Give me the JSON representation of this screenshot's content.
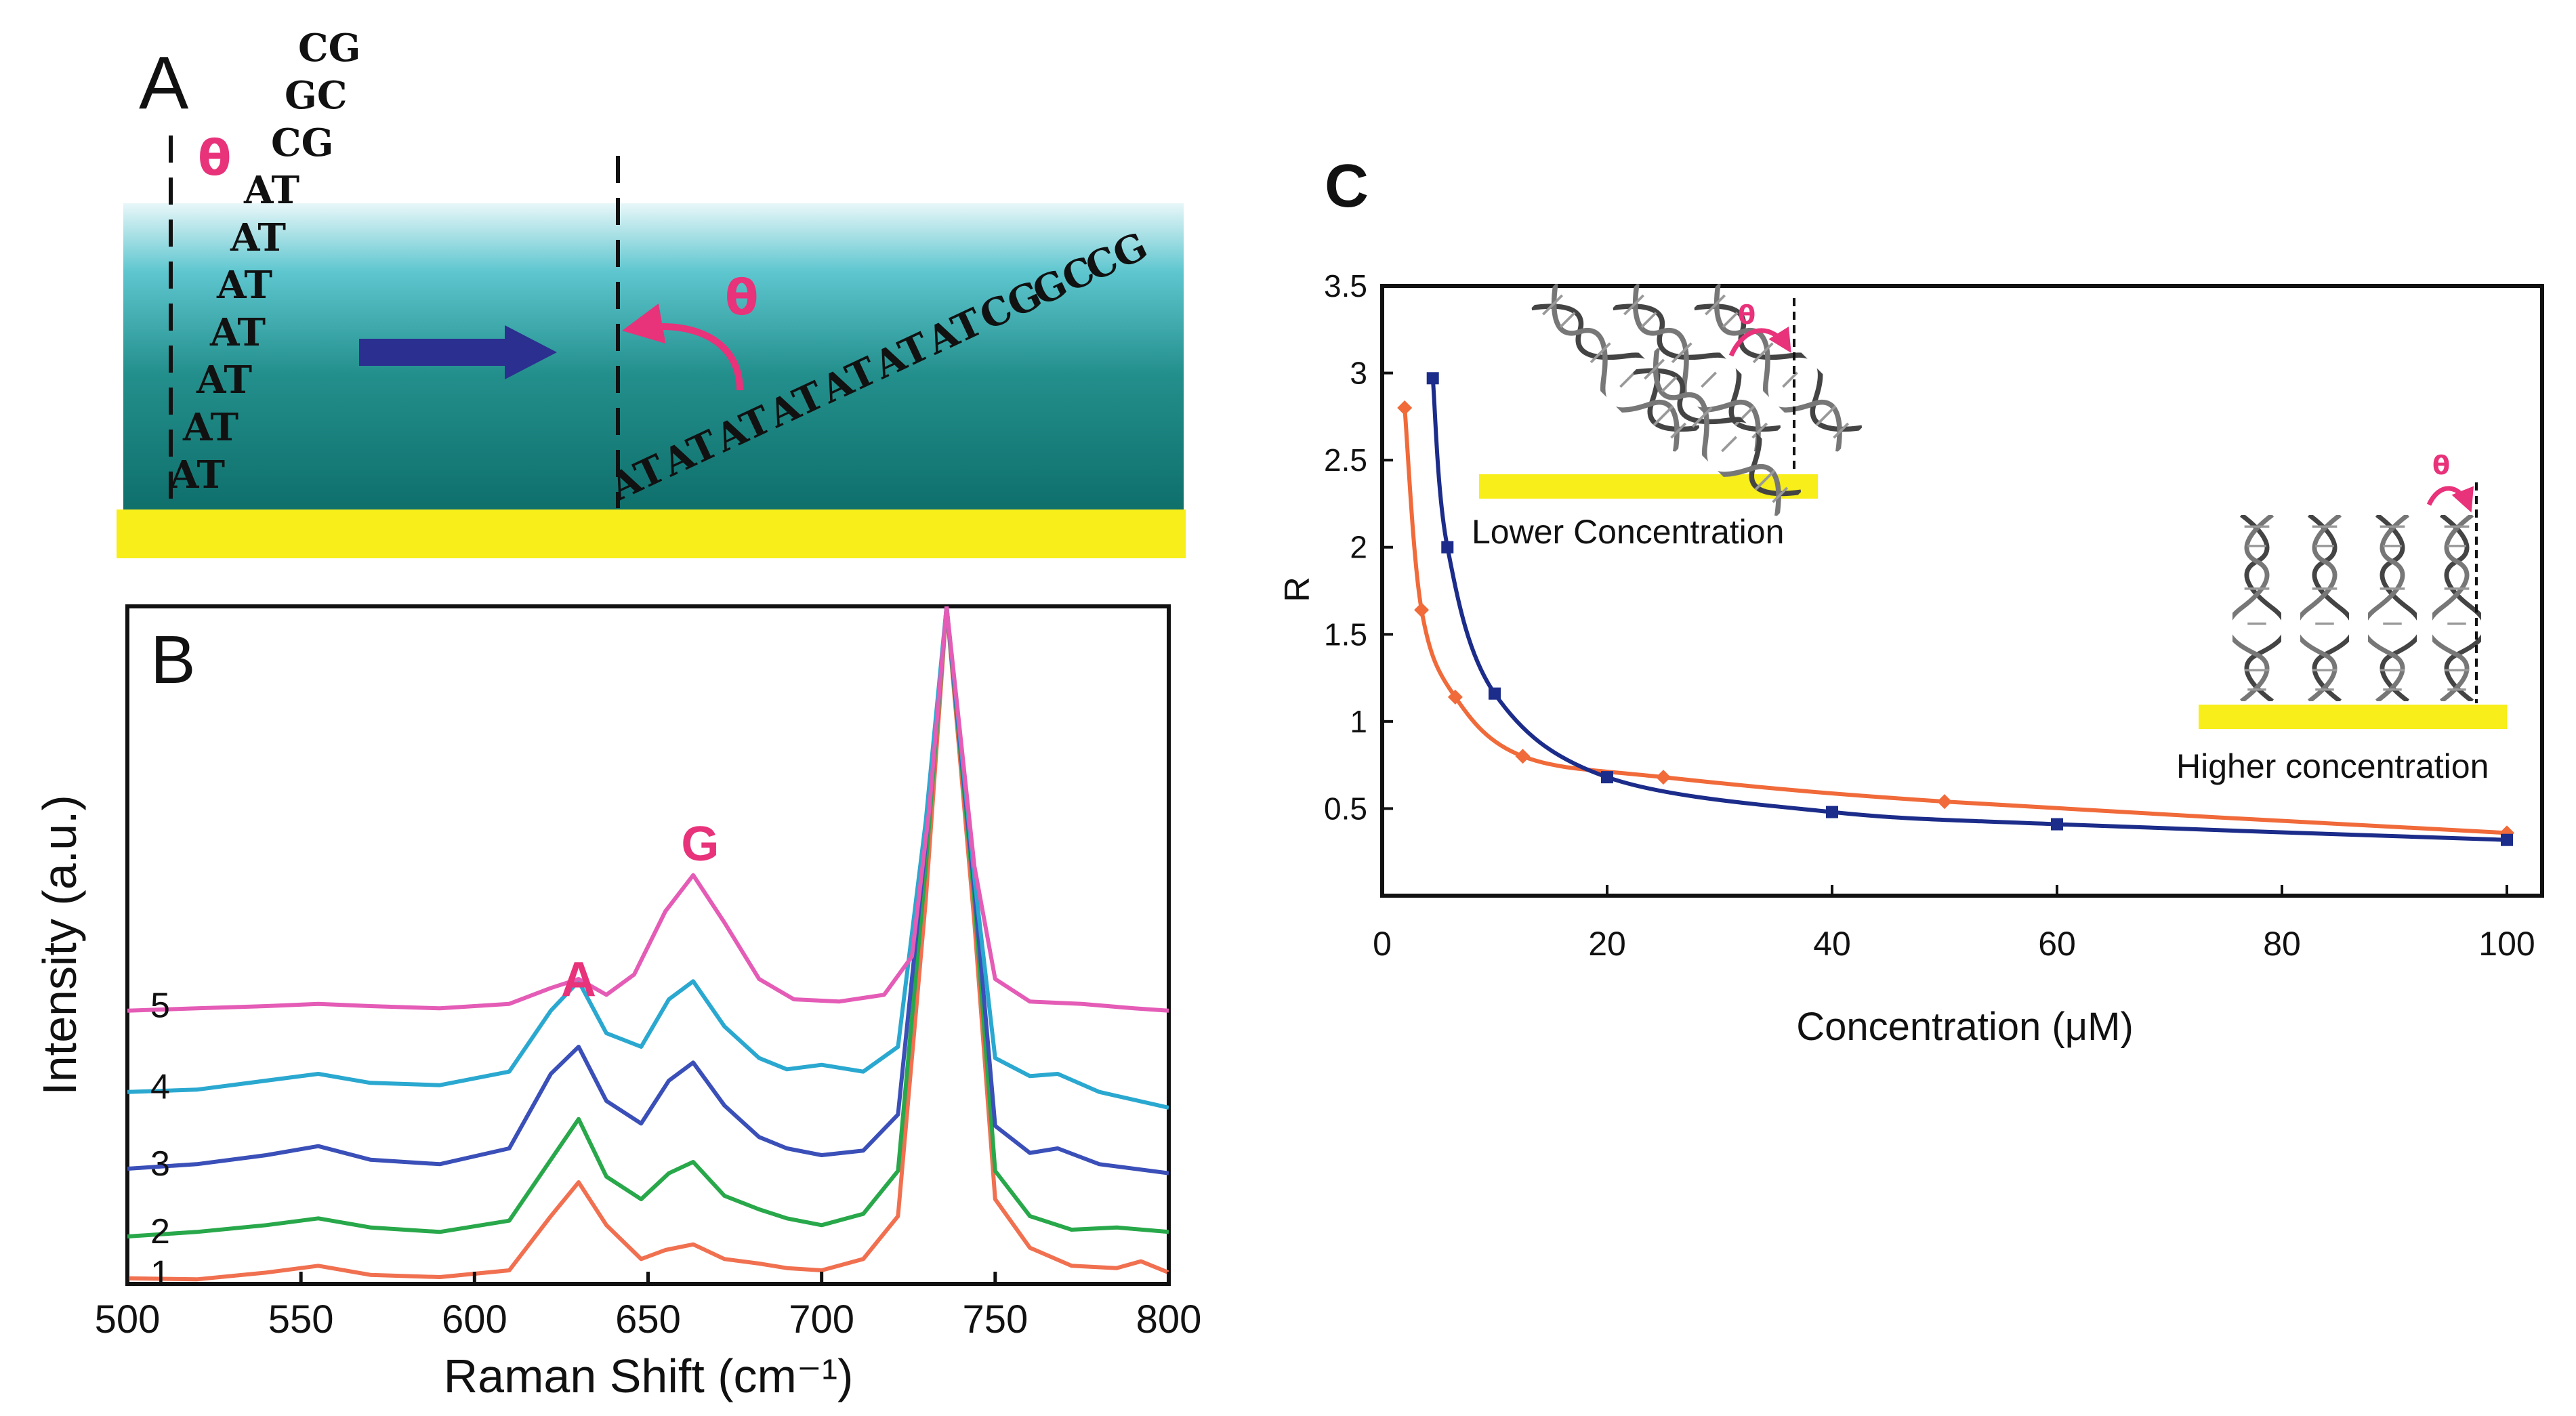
{
  "panel_a": {
    "label": "A",
    "theta": "θ",
    "base_pairs_left": [
      "CG",
      "GC",
      "CG",
      "AT",
      "AT",
      "AT",
      "AT",
      "AT",
      "AT",
      "AT"
    ],
    "base_pairs_right": [
      "AT",
      "AT",
      "AT",
      "AT",
      "AT",
      "AT",
      "AT",
      "CG",
      "GC",
      "CG"
    ],
    "colors": {
      "water_top": "#e8f7f9",
      "water_bottom": "#0e6e6a",
      "substrate": "#f7ee1a",
      "arrow": "#2b2f8f",
      "theta": "#e8327a"
    }
  },
  "chart_data": [
    {
      "type": "line",
      "panel": "B",
      "title": "",
      "xlabel": "Raman Shift (cm⁻¹)",
      "ylabel": "Intensity (a.u.)",
      "xlim": [
        500,
        800
      ],
      "ylim": [
        0,
        6
      ],
      "x_ticks": [
        500,
        550,
        600,
        650,
        700,
        750,
        800
      ],
      "peak_labels": [
        {
          "text": "A",
          "x": 630,
          "y": 2.55,
          "color": "#e8327a"
        },
        {
          "text": "G",
          "x": 665,
          "y": 3.75,
          "color": "#e8327a"
        }
      ],
      "series": [
        {
          "name": "1",
          "color": "#f07050",
          "offset": 0.05,
          "points": [
            [
              500,
              0.05
            ],
            [
              520,
              0.04
            ],
            [
              540,
              0.1
            ],
            [
              555,
              0.16
            ],
            [
              570,
              0.08
            ],
            [
              590,
              0.06
            ],
            [
              610,
              0.12
            ],
            [
              622,
              0.6
            ],
            [
              630,
              0.9
            ],
            [
              638,
              0.52
            ],
            [
              648,
              0.22
            ],
            [
              655,
              0.3
            ],
            [
              663,
              0.35
            ],
            [
              672,
              0.22
            ],
            [
              682,
              0.18
            ],
            [
              690,
              0.14
            ],
            [
              700,
              0.12
            ],
            [
              712,
              0.22
            ],
            [
              722,
              0.6
            ],
            [
              730,
              3.4
            ],
            [
              736,
              6.6
            ],
            [
              744,
              3.2
            ],
            [
              750,
              0.75
            ],
            [
              760,
              0.32
            ],
            [
              772,
              0.16
            ],
            [
              785,
              0.14
            ],
            [
              792,
              0.2
            ],
            [
              800,
              0.1
            ]
          ]
        },
        {
          "name": "2",
          "color": "#28a84a",
          "offset": 0.42,
          "points": [
            [
              500,
              0.42
            ],
            [
              520,
              0.46
            ],
            [
              540,
              0.52
            ],
            [
              555,
              0.58
            ],
            [
              570,
              0.5
            ],
            [
              590,
              0.46
            ],
            [
              610,
              0.56
            ],
            [
              622,
              1.1
            ],
            [
              630,
              1.46
            ],
            [
              638,
              0.95
            ],
            [
              648,
              0.75
            ],
            [
              656,
              0.98
            ],
            [
              663,
              1.08
            ],
            [
              672,
              0.78
            ],
            [
              682,
              0.66
            ],
            [
              690,
              0.58
            ],
            [
              700,
              0.52
            ],
            [
              712,
              0.62
            ],
            [
              722,
              1.0
            ],
            [
              730,
              3.7
            ],
            [
              736,
              6.6
            ],
            [
              744,
              3.4
            ],
            [
              750,
              1.0
            ],
            [
              760,
              0.6
            ],
            [
              772,
              0.48
            ],
            [
              785,
              0.5
            ],
            [
              800,
              0.46
            ]
          ]
        },
        {
          "name": "3",
          "color": "#3a4fb8",
          "offset": 1.02,
          "points": [
            [
              500,
              1.02
            ],
            [
              520,
              1.06
            ],
            [
              540,
              1.14
            ],
            [
              555,
              1.22
            ],
            [
              570,
              1.1
            ],
            [
              590,
              1.06
            ],
            [
              610,
              1.2
            ],
            [
              622,
              1.86
            ],
            [
              630,
              2.1
            ],
            [
              638,
              1.62
            ],
            [
              648,
              1.42
            ],
            [
              656,
              1.8
            ],
            [
              663,
              1.96
            ],
            [
              672,
              1.58
            ],
            [
              682,
              1.3
            ],
            [
              690,
              1.2
            ],
            [
              700,
              1.14
            ],
            [
              712,
              1.18
            ],
            [
              722,
              1.5
            ],
            [
              730,
              3.9
            ],
            [
              736,
              6.6
            ],
            [
              744,
              3.5
            ],
            [
              750,
              1.4
            ],
            [
              760,
              1.16
            ],
            [
              768,
              1.2
            ],
            [
              780,
              1.06
            ],
            [
              800,
              0.98
            ]
          ]
        },
        {
          "name": "4",
          "color": "#2aa8d0",
          "offset": 1.7,
          "points": [
            [
              500,
              1.7
            ],
            [
              520,
              1.72
            ],
            [
              540,
              1.8
            ],
            [
              555,
              1.86
            ],
            [
              570,
              1.78
            ],
            [
              590,
              1.76
            ],
            [
              610,
              1.88
            ],
            [
              622,
              2.42
            ],
            [
              630,
              2.68
            ],
            [
              638,
              2.22
            ],
            [
              648,
              2.1
            ],
            [
              656,
              2.52
            ],
            [
              663,
              2.68
            ],
            [
              672,
              2.28
            ],
            [
              682,
              2.0
            ],
            [
              690,
              1.9
            ],
            [
              700,
              1.94
            ],
            [
              712,
              1.88
            ],
            [
              722,
              2.1
            ],
            [
              730,
              4.1
            ],
            [
              736,
              6.6
            ],
            [
              744,
              3.6
            ],
            [
              750,
              2.0
            ],
            [
              760,
              1.84
            ],
            [
              768,
              1.86
            ],
            [
              780,
              1.7
            ],
            [
              800,
              1.56
            ]
          ]
        },
        {
          "name": "5",
          "color": "#e45cb6",
          "offset": 2.42,
          "points": [
            [
              500,
              2.42
            ],
            [
              520,
              2.44
            ],
            [
              540,
              2.46
            ],
            [
              555,
              2.48
            ],
            [
              570,
              2.46
            ],
            [
              590,
              2.44
            ],
            [
              610,
              2.48
            ],
            [
              622,
              2.62
            ],
            [
              630,
              2.7
            ],
            [
              638,
              2.56
            ],
            [
              646,
              2.74
            ],
            [
              655,
              3.3
            ],
            [
              663,
              3.62
            ],
            [
              672,
              3.2
            ],
            [
              682,
              2.7
            ],
            [
              692,
              2.52
            ],
            [
              705,
              2.5
            ],
            [
              718,
              2.56
            ],
            [
              726,
              2.9
            ],
            [
              731,
              4.2
            ],
            [
              736,
              6.6
            ],
            [
              744,
              3.7
            ],
            [
              750,
              2.7
            ],
            [
              760,
              2.5
            ],
            [
              775,
              2.48
            ],
            [
              790,
              2.44
            ],
            [
              800,
              2.42
            ]
          ]
        }
      ]
    },
    {
      "type": "line",
      "panel": "C",
      "title": "",
      "xlabel": "Concentration (μM)",
      "ylabel": "R",
      "xlim": [
        0,
        100
      ],
      "ylim": [
        0,
        3.5
      ],
      "x_ticks": [
        0,
        20,
        40,
        60,
        80,
        100
      ],
      "y_ticks": [
        0.5,
        1,
        1.5,
        2,
        2.5,
        3,
        3.5
      ],
      "y_tick_labels": [
        "0.5",
        "1",
        "1.5",
        "2",
        "2.5",
        "3",
        "3.5"
      ],
      "series": [
        {
          "name": "orange",
          "color": "#f06a3a",
          "markers": [
            [
              2,
              2.8
            ],
            [
              3.5,
              1.64
            ],
            [
              6.5,
              1.14
            ],
            [
              12.5,
              0.8
            ],
            [
              25,
              0.68
            ],
            [
              50,
              0.54
            ],
            [
              100,
              0.36
            ]
          ]
        },
        {
          "name": "blue",
          "color": "#1c2c8a",
          "markers": [
            [
              4.5,
              2.97
            ],
            [
              5.8,
              2.0
            ],
            [
              10,
              1.16
            ],
            [
              20,
              0.68
            ],
            [
              40,
              0.48
            ],
            [
              60,
              0.41
            ],
            [
              100,
              0.32
            ]
          ]
        }
      ],
      "insets": [
        {
          "label": "Lower Concentration",
          "theta": "θ"
        },
        {
          "label": "Higher concentration",
          "theta": "θ"
        }
      ]
    }
  ],
  "labels": {
    "panel_b": "B",
    "panel_c": "C"
  }
}
